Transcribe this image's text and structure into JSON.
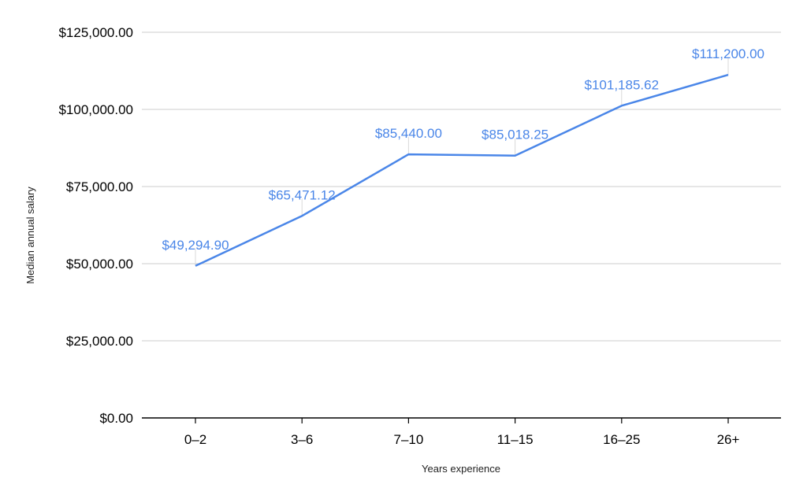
{
  "colors": {
    "line": "#4a86e8",
    "label": "#4a86e8",
    "grid": "#cccccc",
    "axis": "#000000",
    "leader": "#d9d9d9"
  },
  "chart_data": {
    "type": "line",
    "title": "",
    "xlabel": "Years experience",
    "ylabel": "Median annual salary",
    "categories": [
      "0–2",
      "3–6",
      "7–10",
      "11–15",
      "16–25",
      "26+"
    ],
    "values": [
      49294.9,
      65471.12,
      85440.0,
      85018.25,
      101185.62,
      111200.0
    ],
    "data_labels": [
      "$49,294.90",
      "$65,471.12",
      "$85,440.00",
      "$85,018.25",
      "$101,185.62",
      "$111,200.00"
    ],
    "ylim": [
      0,
      125000
    ],
    "yticks": [
      0,
      25000,
      50000,
      75000,
      100000,
      125000
    ],
    "ytick_labels": [
      "$0.00",
      "$25,000.00",
      "$50,000.00",
      "$75,000.00",
      "$100,000.00",
      "$125,000.00"
    ],
    "grid": true,
    "legend": "none"
  }
}
